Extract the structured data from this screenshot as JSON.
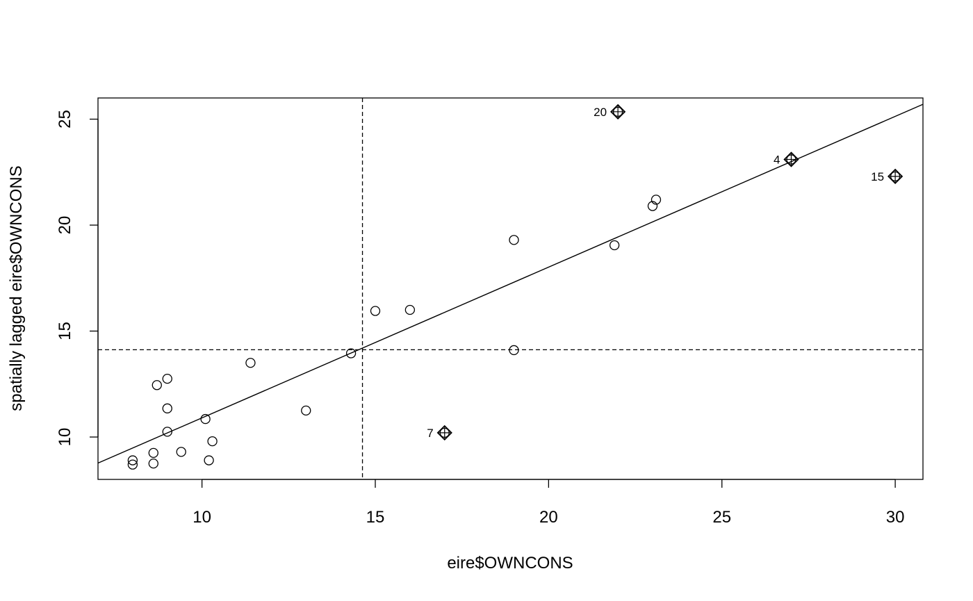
{
  "chart_data": {
    "type": "scatter",
    "title": "",
    "xlabel": "eire$OWNCONS",
    "ylabel": "spatially lagged eire$OWNCONS",
    "xlim": [
      7,
      30.8
    ],
    "ylim": [
      8,
      26
    ],
    "x_ticks": [
      10,
      15,
      20,
      25,
      30
    ],
    "y_ticks": [
      10,
      15,
      20,
      25
    ],
    "grid": false,
    "mean_x": 14.63,
    "mean_y": 14.12,
    "regression": {
      "x0": 7,
      "y0": 8.77,
      "x1": 30.8,
      "y1": 25.7
    },
    "points": [
      {
        "x": 8.0,
        "y": 8.7
      },
      {
        "x": 8.0,
        "y": 8.9
      },
      {
        "x": 8.6,
        "y": 8.75
      },
      {
        "x": 8.6,
        "y": 9.25
      },
      {
        "x": 8.7,
        "y": 12.45
      },
      {
        "x": 9.0,
        "y": 12.75
      },
      {
        "x": 9.0,
        "y": 11.35
      },
      {
        "x": 9.0,
        "y": 10.25
      },
      {
        "x": 9.4,
        "y": 9.3
      },
      {
        "x": 10.1,
        "y": 10.85
      },
      {
        "x": 10.2,
        "y": 8.9
      },
      {
        "x": 10.3,
        "y": 9.8
      },
      {
        "x": 11.4,
        "y": 13.5
      },
      {
        "x": 13.0,
        "y": 11.25
      },
      {
        "x": 14.3,
        "y": 13.95
      },
      {
        "x": 15.0,
        "y": 15.95
      },
      {
        "x": 16.0,
        "y": 16.0
      },
      {
        "x": 19.0,
        "y": 19.3
      },
      {
        "x": 19.0,
        "y": 14.1
      },
      {
        "x": 21.9,
        "y": 19.05
      },
      {
        "x": 23.0,
        "y": 20.9
      },
      {
        "x": 23.1,
        "y": 21.2
      }
    ],
    "influential_points": [
      {
        "x": 22.0,
        "y": 25.35,
        "label": "20"
      },
      {
        "x": 27.0,
        "y": 23.1,
        "label": "4"
      },
      {
        "x": 30.0,
        "y": 22.3,
        "label": "15"
      },
      {
        "x": 17.0,
        "y": 10.2,
        "label": "7"
      }
    ]
  }
}
